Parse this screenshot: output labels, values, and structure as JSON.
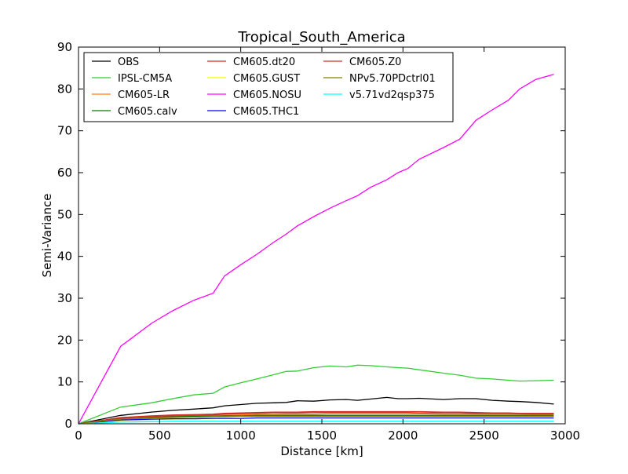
{
  "chart_data": {
    "type": "line",
    "title": "Tropical_South_America",
    "xlabel": "Distance [km]",
    "ylabel": "Semi-Variance",
    "xlim": [
      0,
      3000
    ],
    "ylim": [
      0,
      90
    ],
    "xticks": [
      0,
      500,
      1000,
      1500,
      2000,
      2500,
      3000
    ],
    "yticks": [
      0,
      10,
      20,
      30,
      40,
      50,
      60,
      70,
      80,
      90
    ],
    "grid": false,
    "legend_position": "top-left",
    "legend_columns": 3,
    "x": [
      0,
      260,
      450,
      580,
      710,
      830,
      900,
      1000,
      1100,
      1200,
      1280,
      1350,
      1450,
      1550,
      1650,
      1720,
      1800,
      1900,
      1970,
      2030,
      2100,
      2250,
      2350,
      2450,
      2550,
      2650,
      2720,
      2820,
      2930
    ],
    "series": [
      {
        "name": "OBS",
        "color": "#000000",
        "values": [
          0,
          2.0,
          2.8,
          3.2,
          3.5,
          3.8,
          4.3,
          4.6,
          4.9,
          5.0,
          5.1,
          5.5,
          5.4,
          5.7,
          5.8,
          5.6,
          5.9,
          6.3,
          6.0,
          6.0,
          6.1,
          5.8,
          6.0,
          6.0,
          5.6,
          5.4,
          5.3,
          5.1,
          4.7
        ]
      },
      {
        "name": "IPSL-CM5A",
        "color": "#33cc33",
        "values": [
          0,
          4.0,
          5.0,
          6.0,
          6.9,
          7.3,
          8.8,
          9.8,
          10.7,
          11.7,
          12.5,
          12.6,
          13.4,
          13.8,
          13.6,
          14.0,
          13.9,
          13.6,
          13.4,
          13.3,
          12.9,
          12.1,
          11.6,
          10.9,
          10.7,
          10.4,
          10.2,
          10.3,
          10.4
        ]
      },
      {
        "name": "CM605-LR",
        "color": "#ff7f0e",
        "values": [
          0,
          1.0,
          1.4,
          1.6,
          1.8,
          1.9,
          2.0,
          2.1,
          2.2,
          2.2,
          2.3,
          2.3,
          2.3,
          2.4,
          2.4,
          2.4,
          2.4,
          2.4,
          2.4,
          2.4,
          2.4,
          2.3,
          2.3,
          2.3,
          2.3,
          2.3,
          2.3,
          2.2,
          2.2
        ]
      },
      {
        "name": "CM605.calv",
        "color": "#008000",
        "values": [
          0,
          1.4,
          1.6,
          1.7,
          1.8,
          1.8,
          1.9,
          1.9,
          2.0,
          2.0,
          2.0,
          2.0,
          2.0,
          2.0,
          2.0,
          2.0,
          2.0,
          2.0,
          2.0,
          2.0,
          2.0,
          2.0,
          2.0,
          2.0,
          2.0,
          2.0,
          2.0,
          2.0,
          2.0
        ]
      },
      {
        "name": "CM605.dt20",
        "color": "#d62728",
        "values": [
          0,
          1.5,
          1.9,
          2.1,
          2.2,
          2.3,
          2.5,
          2.6,
          2.7,
          2.8,
          2.8,
          2.8,
          2.9,
          2.9,
          2.9,
          2.9,
          2.9,
          2.9,
          2.9,
          2.9,
          2.9,
          2.8,
          2.8,
          2.7,
          2.6,
          2.6,
          2.5,
          2.5,
          2.5
        ]
      },
      {
        "name": "CM605.GUST",
        "color": "#ffff00",
        "values": [
          0,
          0.8,
          1.0,
          1.1,
          1.2,
          1.2,
          1.3,
          1.3,
          1.3,
          1.3,
          1.3,
          1.3,
          1.3,
          1.3,
          1.3,
          1.3,
          1.3,
          1.3,
          1.3,
          1.3,
          1.3,
          1.3,
          1.3,
          1.3,
          1.3,
          1.3,
          1.3,
          1.3,
          1.3
        ]
      },
      {
        "name": "CM605.NOSU",
        "color": "#ff00ff",
        "values": [
          0,
          18.5,
          24.0,
          27.0,
          29.5,
          31.2,
          35.3,
          38.0,
          40.5,
          43.3,
          45.3,
          47.3,
          49.5,
          51.5,
          53.3,
          54.5,
          56.5,
          58.3,
          60.0,
          61.0,
          63.2,
          66.0,
          68.0,
          72.5,
          75.0,
          77.3,
          80.0,
          82.3,
          83.5
        ]
      },
      {
        "name": "CM605.THC1",
        "color": "#0000ff",
        "values": [
          0,
          0.9,
          1.1,
          1.2,
          1.2,
          1.3,
          1.3,
          1.3,
          1.4,
          1.4,
          1.4,
          1.4,
          1.4,
          1.4,
          1.4,
          1.4,
          1.4,
          1.4,
          1.4,
          1.4,
          1.4,
          1.4,
          1.4,
          1.4,
          1.4,
          1.4,
          1.4,
          1.4,
          1.4
        ]
      },
      {
        "name": "CM605.Z0",
        "color": "#c0392b",
        "values": [
          0,
          1.3,
          1.7,
          1.9,
          2.0,
          2.1,
          2.3,
          2.4,
          2.5,
          2.6,
          2.6,
          2.6,
          2.7,
          2.7,
          2.7,
          2.7,
          2.7,
          2.7,
          2.7,
          2.7,
          2.6,
          2.6,
          2.6,
          2.5,
          2.5,
          2.5,
          2.4,
          2.4,
          2.4
        ]
      },
      {
        "name": "NPv5.70PDctrl01",
        "color": "#808000",
        "values": [
          0,
          1.1,
          1.4,
          1.5,
          1.6,
          1.7,
          1.7,
          1.8,
          1.8,
          1.8,
          1.8,
          1.8,
          1.8,
          1.8,
          1.8,
          1.8,
          1.8,
          1.8,
          1.8,
          1.8,
          1.8,
          1.8,
          1.8,
          1.8,
          1.8,
          1.8,
          1.8,
          1.8,
          1.8
        ]
      },
      {
        "name": "v5.71vd2qsp375",
        "color": "#00ffff",
        "values": [
          0,
          0.4,
          0.5,
          0.6,
          0.6,
          0.6,
          0.6,
          0.6,
          0.6,
          0.6,
          0.6,
          0.6,
          0.6,
          0.6,
          0.6,
          0.6,
          0.6,
          0.6,
          0.6,
          0.6,
          0.6,
          0.6,
          0.6,
          0.6,
          0.6,
          0.6,
          0.6,
          0.6,
          0.6
        ]
      }
    ]
  }
}
